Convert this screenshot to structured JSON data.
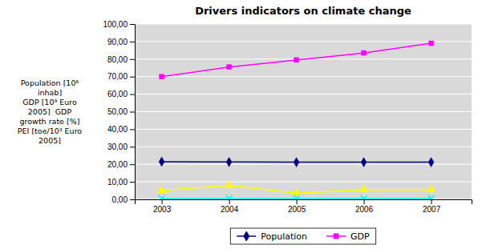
{
  "chart_data": {
    "type": "line",
    "title": "Drivers indicators on climate change",
    "y_label": "Population [10⁶\ninhab]\nGDP [10⁹ Euro\n2005]  GDP\ngrowth rate [%]\nPEI [toe/10³ Euro\n2005]",
    "x": [
      2003,
      2004,
      2005,
      2006,
      2007
    ],
    "xlim": [
      2002.6,
      2007.6
    ],
    "xticks": [
      2003,
      2004,
      2005,
      2006,
      2007
    ],
    "ylim": [
      0,
      100
    ],
    "yticks": [
      {
        "value": 0,
        "label": "0,00"
      },
      {
        "value": 10,
        "label": "10,00"
      },
      {
        "value": 20,
        "label": "20,00"
      },
      {
        "value": 30,
        "label": "30,00"
      },
      {
        "value": 40,
        "label": "40,00"
      },
      {
        "value": 50,
        "label": "50,00"
      },
      {
        "value": 60,
        "label": "60,00"
      },
      {
        "value": 70,
        "label": "70,00"
      },
      {
        "value": 80,
        "label": "80,00"
      },
      {
        "value": 90,
        "label": "90,00"
      },
      {
        "value": 100,
        "label": "100,00"
      }
    ],
    "grid": true,
    "legend": "bottom",
    "series": [
      {
        "name": "Population",
        "color": "#000080",
        "marker": "diamond",
        "values": [
          21.5,
          21.3,
          21.2,
          21.2,
          21.2
        ]
      },
      {
        "name": "GDP",
        "color": "#FF00FF",
        "marker": "square",
        "values": [
          70.0,
          75.5,
          79.5,
          83.5,
          89.0
        ]
      },
      {
        "color": "#FFFF00",
        "marker": "triangle",
        "values": [
          5.0,
          8.0,
          3.5,
          5.5,
          5.5
        ]
      },
      {
        "color": "#00FFFF",
        "marker": "x",
        "values": [
          0.5,
          0.5,
          0.5,
          0.5,
          0.5
        ]
      }
    ]
  }
}
